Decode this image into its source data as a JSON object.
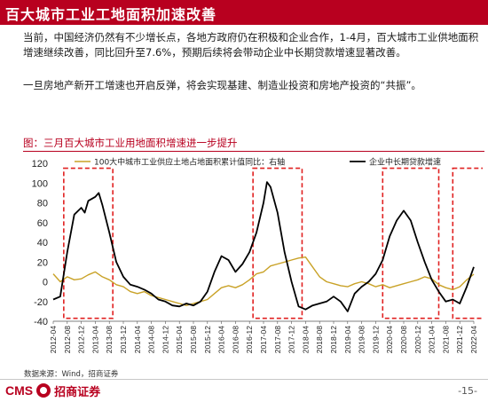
{
  "header": {
    "title": "百大城市工业工地面积加速改善"
  },
  "body": {
    "paragraph1": "当前，中国经济仍然有不少增长点，各地方政府仍在积极和企业合作，1-4月，百大城市工业供地面积增速继续改善，同比回升至7.6%，预期后续将会带动企业中长期贷款增速显著改善。",
    "paragraph2": "一旦房地产新开工增速也开启反弹，将会实现基建、制造业投资和房地产投资的“共振”。"
  },
  "chart_caption": "图：三月百大城市工业用地面积增速进一步提升",
  "source_note": "数据来源：Wind，招商证券",
  "footer": {
    "logo_cms": "CMS",
    "logo_cn": "招商证券",
    "page": "-15-"
  },
  "colors": {
    "brand": "#b8001f",
    "series_land": "#c9a227",
    "series_loan": "#000000",
    "highlight_box": "#e02020"
  },
  "chart_data": {
    "type": "line",
    "ylim": [
      -40,
      120
    ],
    "yticks": [
      -40,
      -20,
      0,
      20,
      40,
      60,
      80,
      100,
      120
    ],
    "grid": false,
    "legend_position": "top",
    "xtick_labels": [
      "2012-04",
      "2012-08",
      "2012-12",
      "2013-04",
      "2013-08",
      "2013-12",
      "2014-04",
      "2014-08",
      "2014-12",
      "2015-04",
      "2015-08",
      "2015-12",
      "2016-04",
      "2016-08",
      "2016-12",
      "2017-04",
      "2017-08",
      "2017-12",
      "2018-04",
      "2018-08",
      "2018-12",
      "2019-04",
      "2019-08",
      "2019-12",
      "2020-04",
      "2020-08",
      "2020-12",
      "2021-04",
      "2021-08",
      "2021-12",
      "2022-04"
    ],
    "x_range": [
      "2012-04",
      "2022-04"
    ],
    "series": [
      {
        "name": "100大中城市工业供应土地占地面积累计值同比：右轴",
        "style": "line",
        "points": [
          [
            "2012-04",
            8
          ],
          [
            "2012-06",
            0
          ],
          [
            "2012-08",
            5
          ],
          [
            "2012-10",
            2
          ],
          [
            "2012-12",
            3
          ],
          [
            "2013-02",
            7
          ],
          [
            "2013-04",
            10
          ],
          [
            "2013-06",
            5
          ],
          [
            "2013-08",
            2
          ],
          [
            "2013-10",
            -3
          ],
          [
            "2013-12",
            -5
          ],
          [
            "2014-02",
            -10
          ],
          [
            "2014-04",
            -12
          ],
          [
            "2014-06",
            -10
          ],
          [
            "2014-08",
            -14
          ],
          [
            "2014-10",
            -16
          ],
          [
            "2014-12",
            -18
          ],
          [
            "2015-02",
            -20
          ],
          [
            "2015-04",
            -22
          ],
          [
            "2015-06",
            -24
          ],
          [
            "2015-08",
            -22
          ],
          [
            "2015-10",
            -20
          ],
          [
            "2015-12",
            -18
          ],
          [
            "2016-02",
            -12
          ],
          [
            "2016-04",
            -6
          ],
          [
            "2016-06",
            -4
          ],
          [
            "2016-08",
            -6
          ],
          [
            "2016-10",
            -3
          ],
          [
            "2016-12",
            2
          ],
          [
            "2017-02",
            8
          ],
          [
            "2017-04",
            10
          ],
          [
            "2017-06",
            16
          ],
          [
            "2017-08",
            18
          ],
          [
            "2017-10",
            20
          ],
          [
            "2017-12",
            22
          ],
          [
            "2018-02",
            24
          ],
          [
            "2018-04",
            25
          ],
          [
            "2018-06",
            15
          ],
          [
            "2018-08",
            5
          ],
          [
            "2018-10",
            0
          ],
          [
            "2018-12",
            -2
          ],
          [
            "2019-02",
            -4
          ],
          [
            "2019-04",
            -5
          ],
          [
            "2019-06",
            -2
          ],
          [
            "2019-08",
            0
          ],
          [
            "2019-10",
            -2
          ],
          [
            "2019-12",
            -5
          ],
          [
            "2020-02",
            -3
          ],
          [
            "2020-04",
            -6
          ],
          [
            "2020-06",
            -4
          ],
          [
            "2020-08",
            -2
          ],
          [
            "2020-10",
            0
          ],
          [
            "2020-12",
            2
          ],
          [
            "2021-02",
            5
          ],
          [
            "2021-04",
            3
          ],
          [
            "2021-06",
            -3
          ],
          [
            "2021-08",
            -6
          ],
          [
            "2021-10",
            -8
          ],
          [
            "2021-12",
            -5
          ],
          [
            "2022-02",
            2
          ],
          [
            "2022-04",
            7.6
          ]
        ]
      },
      {
        "name": "企业中长期贷款增速",
        "style": "line",
        "points": [
          [
            "2012-04",
            -18
          ],
          [
            "2012-06",
            -15
          ],
          [
            "2012-08",
            30
          ],
          [
            "2012-10",
            68
          ],
          [
            "2012-12",
            75
          ],
          [
            "2013-01",
            70
          ],
          [
            "2013-02",
            82
          ],
          [
            "2013-04",
            86
          ],
          [
            "2013-05",
            90
          ],
          [
            "2013-06",
            78
          ],
          [
            "2013-08",
            50
          ],
          [
            "2013-10",
            20
          ],
          [
            "2013-12",
            5
          ],
          [
            "2014-02",
            -3
          ],
          [
            "2014-04",
            -5
          ],
          [
            "2014-06",
            -8
          ],
          [
            "2014-08",
            -12
          ],
          [
            "2014-10",
            -18
          ],
          [
            "2014-12",
            -20
          ],
          [
            "2015-02",
            -24
          ],
          [
            "2015-04",
            -25
          ],
          [
            "2015-06",
            -22
          ],
          [
            "2015-08",
            -24
          ],
          [
            "2015-10",
            -20
          ],
          [
            "2015-12",
            -10
          ],
          [
            "2016-02",
            10
          ],
          [
            "2016-04",
            26
          ],
          [
            "2016-06",
            22
          ],
          [
            "2016-08",
            10
          ],
          [
            "2016-10",
            18
          ],
          [
            "2016-12",
            30
          ],
          [
            "2017-02",
            50
          ],
          [
            "2017-04",
            80
          ],
          [
            "2017-05",
            101
          ],
          [
            "2017-06",
            96
          ],
          [
            "2017-08",
            70
          ],
          [
            "2017-10",
            30
          ],
          [
            "2017-12",
            0
          ],
          [
            "2018-02",
            -25
          ],
          [
            "2018-04",
            -28
          ],
          [
            "2018-06",
            -24
          ],
          [
            "2018-08",
            -22
          ],
          [
            "2018-10",
            -20
          ],
          [
            "2018-12",
            -15
          ],
          [
            "2019-02",
            -20
          ],
          [
            "2019-04",
            -30
          ],
          [
            "2019-06",
            -12
          ],
          [
            "2019-08",
            -5
          ],
          [
            "2019-10",
            0
          ],
          [
            "2019-12",
            8
          ],
          [
            "2020-02",
            22
          ],
          [
            "2020-04",
            46
          ],
          [
            "2020-06",
            62
          ],
          [
            "2020-08",
            72
          ],
          [
            "2020-10",
            62
          ],
          [
            "2020-12",
            40
          ],
          [
            "2021-02",
            20
          ],
          [
            "2021-04",
            2
          ],
          [
            "2021-06",
            -10
          ],
          [
            "2021-08",
            -20
          ],
          [
            "2021-10",
            -18
          ],
          [
            "2021-12",
            -22
          ],
          [
            "2022-02",
            -5
          ],
          [
            "2022-04",
            15
          ]
        ]
      }
    ],
    "highlight_ranges": [
      {
        "from": "2012-07",
        "to": "2013-09"
      },
      {
        "from": "2017-01",
        "to": "2018-03"
      },
      {
        "from": "2020-02",
        "to": "2021-06"
      },
      {
        "from": "2021-10",
        "to": "2022-07"
      }
    ]
  }
}
